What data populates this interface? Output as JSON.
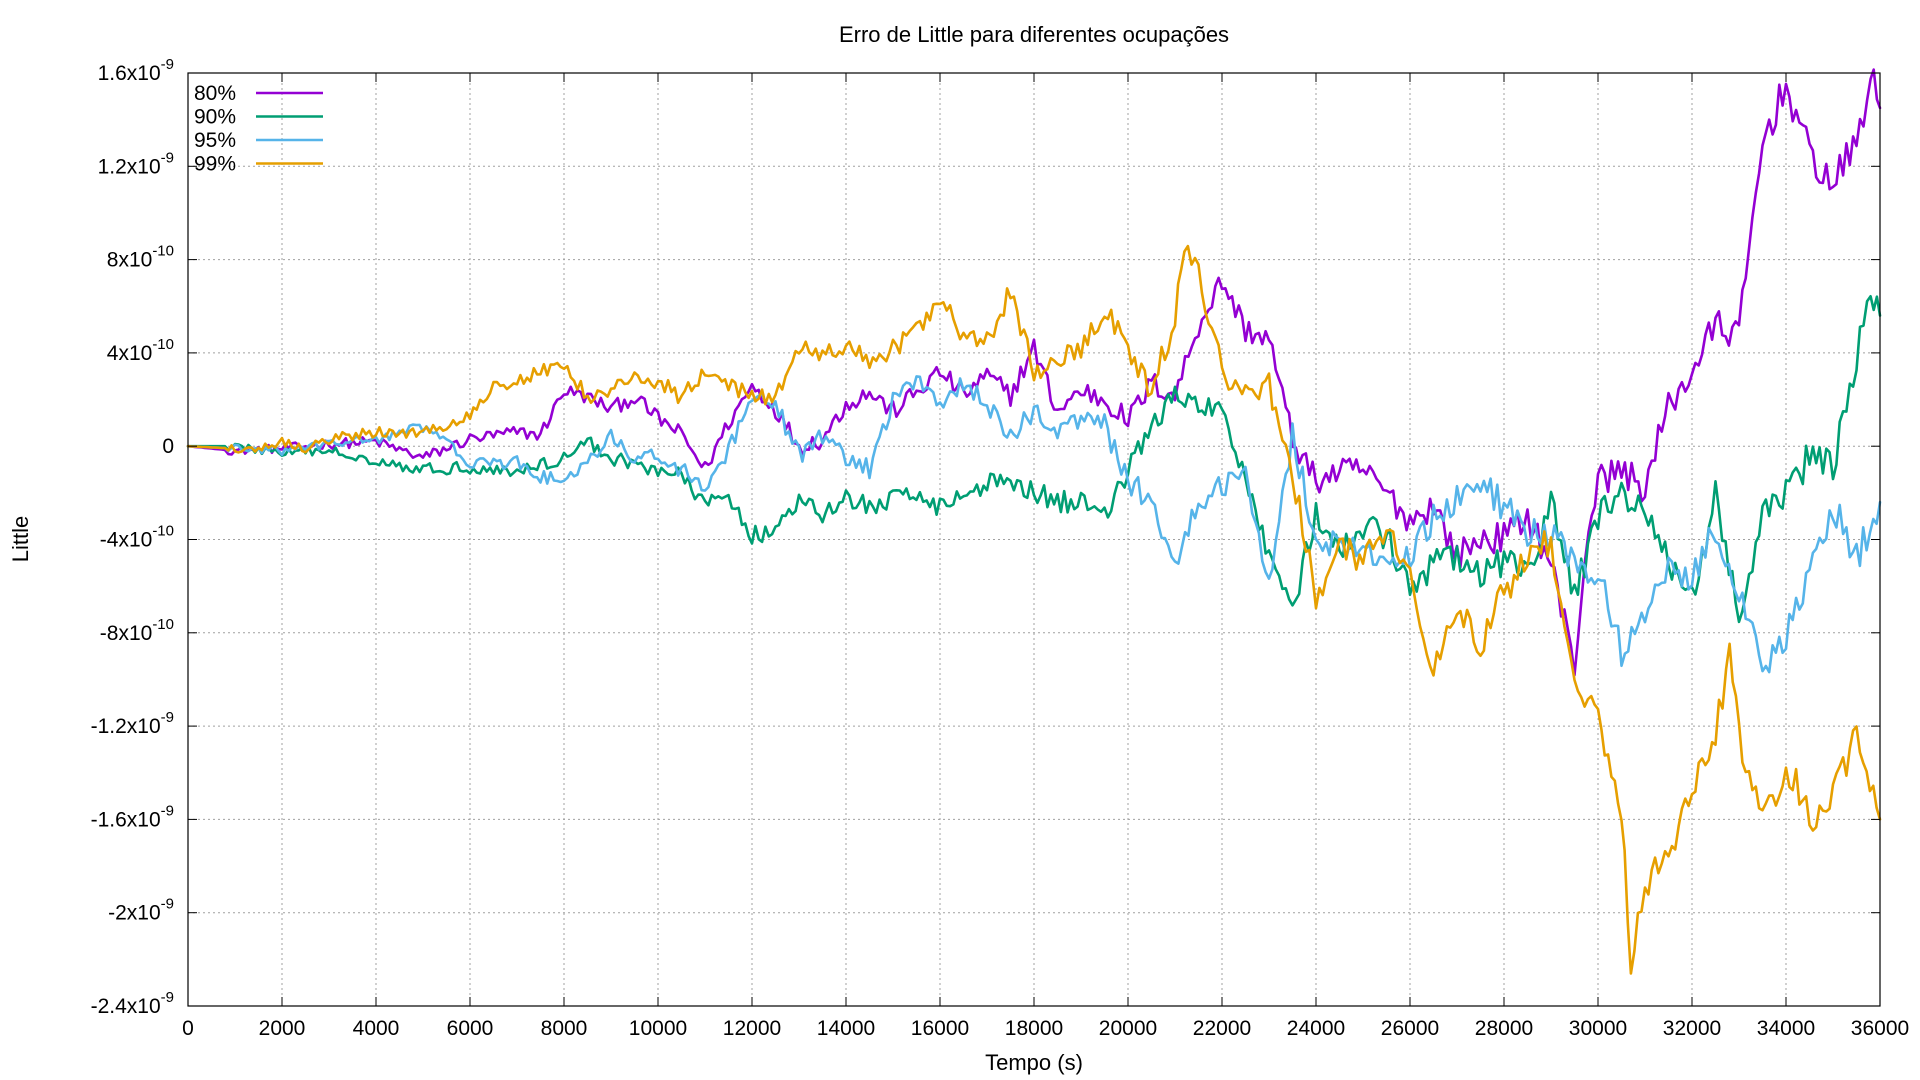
{
  "chart_data": {
    "type": "line",
    "title": "Erro de Little para diferentes ocupações",
    "xlabel": "Tempo (s)",
    "ylabel": "Little",
    "xlim": [
      0,
      36000
    ],
    "ylim": [
      -2.4e-09,
      1.6e-09
    ],
    "grid": true,
    "legend_position": "top-left",
    "x_ticks": [
      0,
      2000,
      4000,
      6000,
      8000,
      10000,
      12000,
      14000,
      16000,
      18000,
      20000,
      22000,
      24000,
      26000,
      28000,
      30000,
      32000,
      34000,
      36000
    ],
    "x_tick_labels": [
      "0",
      "2000",
      "4000",
      "6000",
      "8000",
      "10000",
      "12000",
      "14000",
      "16000",
      "18000",
      "20000",
      "22000",
      "24000",
      "26000",
      "28000",
      "30000",
      "32000",
      "34000",
      "36000"
    ],
    "y_ticks": [
      1.6e-09,
      1.2e-09,
      8e-10,
      4e-10,
      0,
      -4e-10,
      -8e-10,
      -1.2e-09,
      -1.6e-09,
      -2e-09,
      -2.4e-09
    ],
    "y_tick_labels": [
      {
        "mantissa": "1.6x10",
        "exp": "-9"
      },
      {
        "mantissa": "1.2x10",
        "exp": "-9"
      },
      {
        "mantissa": "8x10",
        "exp": "-10"
      },
      {
        "mantissa": "4x10",
        "exp": "-10"
      },
      {
        "mantissa": "0",
        "exp": ""
      },
      {
        "mantissa": "-4x10",
        "exp": "-10"
      },
      {
        "mantissa": "-8x10",
        "exp": "-10"
      },
      {
        "mantissa": "-1.2x10",
        "exp": "-9"
      },
      {
        "mantissa": "-1.6x10",
        "exp": "-9"
      },
      {
        "mantissa": "-2x10",
        "exp": "-9"
      },
      {
        "mantissa": "-2.4x10",
        "exp": "-9"
      }
    ],
    "series": [
      {
        "name": "80%",
        "color": "#9400d3",
        "points": [
          [
            0,
            0
          ],
          [
            1000,
            -2e-11
          ],
          [
            2000,
            -1e-11
          ],
          [
            3000,
            1e-11
          ],
          [
            4000,
            2e-11
          ],
          [
            5000,
            -5e-11
          ],
          [
            6000,
            3e-11
          ],
          [
            7000,
            6e-11
          ],
          [
            7500,
            5e-11
          ],
          [
            8000,
            2.4e-10
          ],
          [
            8500,
            2.1e-10
          ],
          [
            9000,
            1.6e-10
          ],
          [
            9500,
            2.1e-10
          ],
          [
            10000,
            1.2e-10
          ],
          [
            10500,
            5e-11
          ],
          [
            11000,
            -1e-10
          ],
          [
            11500,
            1e-10
          ],
          [
            12000,
            2.6e-10
          ],
          [
            12500,
            1.6e-10
          ],
          [
            13000,
            0
          ],
          [
            13500,
            3e-11
          ],
          [
            14000,
            1.8e-10
          ],
          [
            14500,
            2.3e-10
          ],
          [
            15000,
            1.5e-10
          ],
          [
            15500,
            2.3e-10
          ],
          [
            16000,
            3.2e-10
          ],
          [
            16500,
            2.2e-10
          ],
          [
            17000,
            3e-10
          ],
          [
            17500,
            2.2e-10
          ],
          [
            18000,
            4.2e-10
          ],
          [
            18500,
            1.5e-10
          ],
          [
            19000,
            2.4e-10
          ],
          [
            19500,
            2e-10
          ],
          [
            20000,
            1.1e-10
          ],
          [
            20500,
            2.7e-10
          ],
          [
            21000,
            2.2e-10
          ],
          [
            21500,
            5.2e-10
          ],
          [
            22000,
            7.1e-10
          ],
          [
            22500,
            5e-10
          ],
          [
            23000,
            4.6e-10
          ],
          [
            23500,
            3e-11
          ],
          [
            24000,
            -1.5e-10
          ],
          [
            24500,
            -1.1e-10
          ],
          [
            25000,
            -1e-10
          ],
          [
            25500,
            -2e-10
          ],
          [
            26000,
            -3.2e-10
          ],
          [
            26500,
            -2.5e-10
          ],
          [
            27000,
            -4.7e-10
          ],
          [
            27500,
            -4e-10
          ],
          [
            28000,
            -3.9e-10
          ],
          [
            28500,
            -3e-10
          ],
          [
            29000,
            -5e-10
          ],
          [
            29500,
            -9.4e-10
          ],
          [
            29800,
            -3.4e-10
          ],
          [
            30000,
            -1.5e-10
          ],
          [
            30500,
            -1e-10
          ],
          [
            31000,
            -1.8e-10
          ],
          [
            31500,
            1.7e-10
          ],
          [
            32000,
            3.2e-10
          ],
          [
            32500,
            5.2e-10
          ],
          [
            33000,
            4.8e-10
          ],
          [
            33500,
            1.3e-09
          ],
          [
            34000,
            1.55e-09
          ],
          [
            34500,
            1.25e-09
          ],
          [
            35000,
            1.12e-09
          ],
          [
            35500,
            1.3e-09
          ],
          [
            35800,
            1.58e-09
          ],
          [
            36000,
            1.45e-09
          ]
        ]
      },
      {
        "name": "90%",
        "color": "#009e73",
        "points": [
          [
            0,
            0
          ],
          [
            1000,
            0
          ],
          [
            2000,
            -3e-11
          ],
          [
            3000,
            -2e-11
          ],
          [
            4000,
            -6e-11
          ],
          [
            5000,
            -1e-10
          ],
          [
            6000,
            -9e-11
          ],
          [
            7000,
            -1.1e-10
          ],
          [
            8000,
            -5e-11
          ],
          [
            8500,
            2e-11
          ],
          [
            9000,
            -5e-11
          ],
          [
            10000,
            -1e-10
          ],
          [
            10500,
            -1.3e-10
          ],
          [
            11000,
            -2.5e-10
          ],
          [
            11500,
            -2.1e-10
          ],
          [
            12000,
            -3.8e-10
          ],
          [
            12500,
            -3.7e-10
          ],
          [
            13000,
            -2.3e-10
          ],
          [
            13500,
            -3e-10
          ],
          [
            14000,
            -2.2e-10
          ],
          [
            14500,
            -2.6e-10
          ],
          [
            15000,
            -2.3e-10
          ],
          [
            15500,
            -1.9e-10
          ],
          [
            16000,
            -2.6e-10
          ],
          [
            16500,
            -2.1e-10
          ],
          [
            17000,
            -1.6e-10
          ],
          [
            17500,
            -1.4e-10
          ],
          [
            18000,
            -1.9e-10
          ],
          [
            18500,
            -2.4e-10
          ],
          [
            19000,
            -2.4e-10
          ],
          [
            19500,
            -2.8e-10
          ],
          [
            20000,
            -1.1e-10
          ],
          [
            20500,
            9e-11
          ],
          [
            21000,
            2.1e-10
          ],
          [
            21500,
            1.7e-10
          ],
          [
            22000,
            1.4e-10
          ],
          [
            22500,
            -1.2e-10
          ],
          [
            23000,
            -4.6e-10
          ],
          [
            23500,
            -6.9e-10
          ],
          [
            24000,
            -3e-10
          ],
          [
            24500,
            -4.6e-10
          ],
          [
            25000,
            -3.5e-10
          ],
          [
            25500,
            -3.8e-10
          ],
          [
            26000,
            -6.3e-10
          ],
          [
            26500,
            -5e-10
          ],
          [
            27000,
            -4.8e-10
          ],
          [
            27500,
            -5.6e-10
          ],
          [
            28000,
            -4.9e-10
          ],
          [
            28500,
            -5.6e-10
          ],
          [
            29000,
            -2.4e-10
          ],
          [
            29500,
            -6.5e-10
          ],
          [
            30000,
            -2.9e-10
          ],
          [
            30500,
            -1.8e-10
          ],
          [
            31000,
            -3.2e-10
          ],
          [
            31500,
            -4.9e-10
          ],
          [
            32000,
            -6.5e-10
          ],
          [
            32500,
            -2.1e-10
          ],
          [
            33000,
            -7.5e-10
          ],
          [
            33500,
            -3.2e-10
          ],
          [
            34000,
            -1.9e-10
          ],
          [
            34500,
            -5e-11
          ],
          [
            35000,
            -1e-10
          ],
          [
            35500,
            3.8e-10
          ],
          [
            35800,
            6.6e-10
          ],
          [
            36000,
            5.6e-10
          ]
        ]
      },
      {
        "name": "95%",
        "color": "#56b4e9",
        "points": [
          [
            0,
            0
          ],
          [
            1000,
            -1e-11
          ],
          [
            2000,
            -2e-11
          ],
          [
            3000,
            1e-11
          ],
          [
            4000,
            3e-11
          ],
          [
            4500,
            6e-11
          ],
          [
            5000,
            8e-11
          ],
          [
            5500,
            2e-11
          ],
          [
            6000,
            -7e-11
          ],
          [
            6500,
            -8e-11
          ],
          [
            7000,
            -7e-11
          ],
          [
            7500,
            -1.3e-10
          ],
          [
            8000,
            -1.5e-10
          ],
          [
            8500,
            -8e-11
          ],
          [
            9000,
            4e-11
          ],
          [
            9500,
            -5e-11
          ],
          [
            10000,
            -4e-11
          ],
          [
            10500,
            -1e-10
          ],
          [
            11000,
            -1.9e-10
          ],
          [
            11500,
            -2e-11
          ],
          [
            12000,
            2e-10
          ],
          [
            12500,
            1.8e-10
          ],
          [
            13000,
            -4e-11
          ],
          [
            13500,
            5e-11
          ],
          [
            14000,
            -5e-11
          ],
          [
            14500,
            -1e-10
          ],
          [
            15000,
            1.9e-10
          ],
          [
            15500,
            3e-10
          ],
          [
            16000,
            1.9e-10
          ],
          [
            16500,
            2.7e-10
          ],
          [
            17000,
            1.7e-10
          ],
          [
            17500,
            4e-11
          ],
          [
            18000,
            1.5e-10
          ],
          [
            18500,
            7e-11
          ],
          [
            19000,
            1.3e-10
          ],
          [
            19500,
            9e-11
          ],
          [
            20000,
            -1.5e-10
          ],
          [
            20500,
            -2.3e-10
          ],
          [
            21000,
            -5e-10
          ],
          [
            21500,
            -2.5e-10
          ],
          [
            22000,
            -1.7e-10
          ],
          [
            22500,
            -1e-10
          ],
          [
            23000,
            -6e-10
          ],
          [
            23500,
            5e-11
          ],
          [
            24000,
            -4e-10
          ],
          [
            24500,
            -4.2e-10
          ],
          [
            25000,
            -4.6e-10
          ],
          [
            25500,
            -4.8e-10
          ],
          [
            26000,
            -4.8e-10
          ],
          [
            26500,
            -3e-10
          ],
          [
            27000,
            -2.3e-10
          ],
          [
            27500,
            -1.5e-10
          ],
          [
            28000,
            -2.6e-10
          ],
          [
            28500,
            -3.7e-10
          ],
          [
            29000,
            -3.9e-10
          ],
          [
            29500,
            -4.9e-10
          ],
          [
            30000,
            -5.5e-10
          ],
          [
            30500,
            -8.8e-10
          ],
          [
            31000,
            -7e-10
          ],
          [
            31500,
            -5.2e-10
          ],
          [
            32000,
            -5.5e-10
          ],
          [
            32500,
            -3.5e-10
          ],
          [
            33000,
            -6.2e-10
          ],
          [
            33500,
            -9.5e-10
          ],
          [
            34000,
            -8e-10
          ],
          [
            34500,
            -5.8e-10
          ],
          [
            35000,
            -2.4e-10
          ],
          [
            35500,
            -4.8e-10
          ],
          [
            36000,
            -2.4e-10
          ]
        ]
      },
      {
        "name": "99%",
        "color": "#e69f00",
        "points": [
          [
            0,
            0
          ],
          [
            1000,
            -1e-11
          ],
          [
            1500,
            -1e-11
          ],
          [
            2000,
            2e-11
          ],
          [
            2500,
            -1e-11
          ],
          [
            3000,
            3e-11
          ],
          [
            4000,
            6e-11
          ],
          [
            4500,
            5e-11
          ],
          [
            5000,
            7e-11
          ],
          [
            5500,
            8e-11
          ],
          [
            6000,
            1.3e-10
          ],
          [
            6500,
            2.6e-10
          ],
          [
            7000,
            2.8e-10
          ],
          [
            7500,
            3.2e-10
          ],
          [
            8000,
            3.5e-10
          ],
          [
            8500,
            2.1e-10
          ],
          [
            9000,
            2.4e-10
          ],
          [
            9500,
            3e-10
          ],
          [
            10000,
            2.8e-10
          ],
          [
            10500,
            2.1e-10
          ],
          [
            11000,
            3.2e-10
          ],
          [
            11500,
            2.6e-10
          ],
          [
            12000,
            2.1e-10
          ],
          [
            12500,
            2.2e-10
          ],
          [
            13000,
            4.2e-10
          ],
          [
            13500,
            3.8e-10
          ],
          [
            14000,
            4.4e-10
          ],
          [
            14500,
            3.5e-10
          ],
          [
            15000,
            4.2e-10
          ],
          [
            15500,
            4.9e-10
          ],
          [
            16000,
            6.5e-10
          ],
          [
            16500,
            4.5e-10
          ],
          [
            17000,
            4.5e-10
          ],
          [
            17500,
            6.6e-10
          ],
          [
            18000,
            3.2e-10
          ],
          [
            18500,
            3.6e-10
          ],
          [
            19000,
            4.2e-10
          ],
          [
            19500,
            5.8e-10
          ],
          [
            20000,
            4.2e-10
          ],
          [
            20500,
            2.4e-10
          ],
          [
            21000,
            5.5e-10
          ],
          [
            21200,
            8.7e-10
          ],
          [
            21500,
            7.5e-10
          ],
          [
            22000,
            3.2e-10
          ],
          [
            22500,
            2.2e-10
          ],
          [
            23000,
            2.6e-10
          ],
          [
            23500,
            -1.2e-10
          ],
          [
            24000,
            -6.4e-10
          ],
          [
            24500,
            -4.3e-10
          ],
          [
            25000,
            -4.9e-10
          ],
          [
            25500,
            -3.4e-10
          ],
          [
            26000,
            -5.8e-10
          ],
          [
            26500,
            -9.5e-10
          ],
          [
            27000,
            -6.6e-10
          ],
          [
            27500,
            -8.5e-10
          ],
          [
            28000,
            -6.3e-10
          ],
          [
            28500,
            -4.8e-10
          ],
          [
            29000,
            -4.1e-10
          ],
          [
            29500,
            -9.8e-10
          ],
          [
            30000,
            -1.15e-09
          ],
          [
            30500,
            -1.6e-09
          ],
          [
            30700,
            -2.2e-09
          ],
          [
            31000,
            -1.9e-09
          ],
          [
            31500,
            -1.72e-09
          ],
          [
            32000,
            -1.5e-09
          ],
          [
            32500,
            -1.25e-09
          ],
          [
            32800,
            -8.8e-10
          ],
          [
            33000,
            -1.25e-09
          ],
          [
            33500,
            -1.62e-09
          ],
          [
            34000,
            -1.35e-09
          ],
          [
            34500,
            -1.6e-09
          ],
          [
            35000,
            -1.5e-09
          ],
          [
            35500,
            -1.22e-09
          ],
          [
            36000,
            -1.6e-09
          ]
        ]
      }
    ]
  }
}
